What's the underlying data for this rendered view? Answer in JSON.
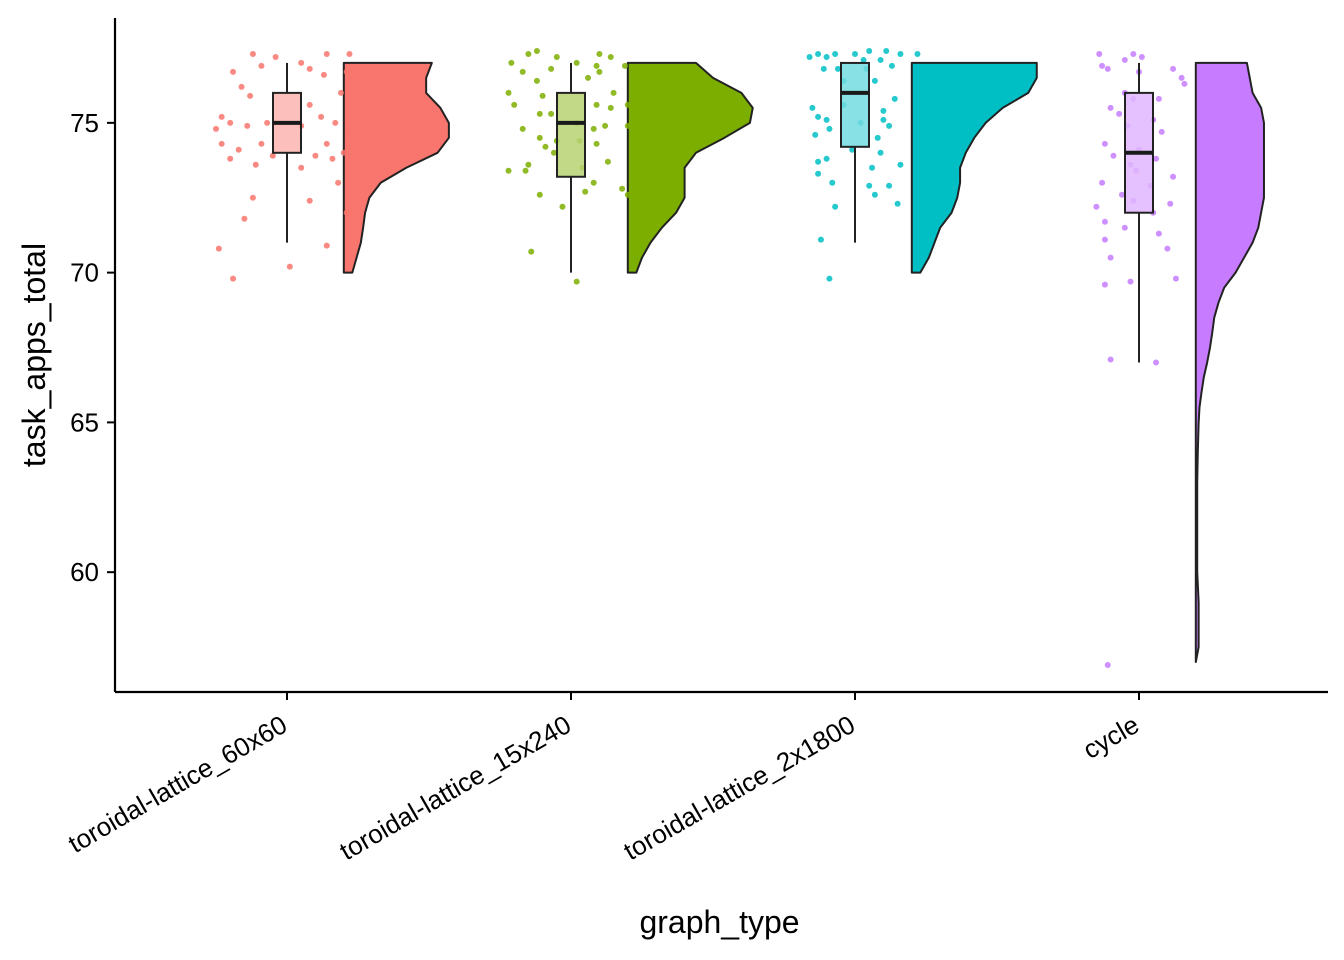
{
  "chart_data": {
    "type": "raincloud",
    "xlabel": "graph_type",
    "ylabel": "task_apps_total",
    "ylim": [
      56,
      78.5
    ],
    "y_ticks": [
      60,
      65,
      70,
      75
    ],
    "categories": [
      "toroidal-lattice_60x60",
      "toroidal-lattice_15x240",
      "toroidal-lattice_2x1800",
      "cycle"
    ],
    "grid": false,
    "legend": "none",
    "groups": [
      {
        "category": "toroidal-lattice_60x60",
        "color": "#F8766D",
        "box": {
          "whisker_low": 71,
          "q1": 74,
          "median": 75,
          "q3": 76,
          "whisker_high": 77
        },
        "points": [
          [
            -0.12,
            77.3
          ],
          [
            -0.04,
            77.2
          ],
          [
            0.05,
            77.0
          ],
          [
            0.14,
            77.3
          ],
          [
            0.22,
            77.3
          ],
          [
            -0.09,
            76.9
          ],
          [
            0.08,
            76.8
          ],
          [
            -0.19,
            76.7
          ],
          [
            0.13,
            76.6
          ],
          [
            0.21,
            76.7
          ],
          [
            -0.16,
            76.2
          ],
          [
            0.19,
            76.0
          ],
          [
            -0.13,
            75.9
          ],
          [
            0.08,
            75.6
          ],
          [
            0.24,
            75.6
          ],
          [
            -0.23,
            75.2
          ],
          [
            -0.07,
            75.0
          ],
          [
            0.12,
            75.2
          ],
          [
            -0.2,
            75.0
          ],
          [
            0.17,
            75.0
          ],
          [
            -0.25,
            74.8
          ],
          [
            -0.14,
            74.9
          ],
          [
            0.05,
            74.9
          ],
          [
            0.22,
            74.7
          ],
          [
            -0.23,
            74.3
          ],
          [
            -0.09,
            74.3
          ],
          [
            -0.17,
            74.1
          ],
          [
            0.14,
            74.3
          ],
          [
            0.2,
            74.0
          ],
          [
            -0.2,
            73.8
          ],
          [
            -0.05,
            73.9
          ],
          [
            0.1,
            73.9
          ],
          [
            0.16,
            73.8
          ],
          [
            -0.11,
            73.6
          ],
          [
            0.05,
            73.5
          ],
          [
            0.18,
            73.0
          ],
          [
            -0.12,
            72.5
          ],
          [
            0.08,
            72.4
          ],
          [
            0.21,
            72.0
          ],
          [
            -0.15,
            71.8
          ],
          [
            -0.24,
            70.8
          ],
          [
            0.14,
            70.9
          ],
          [
            0.01,
            70.2
          ],
          [
            -0.19,
            69.8
          ]
        ],
        "violin": [
          [
            70,
            0.03
          ],
          [
            70.5,
            0.045
          ],
          [
            71,
            0.06
          ],
          [
            71.5,
            0.068
          ],
          [
            72,
            0.075
          ],
          [
            72.5,
            0.09
          ],
          [
            73,
            0.13
          ],
          [
            73.5,
            0.22
          ],
          [
            74,
            0.33
          ],
          [
            74.5,
            0.37
          ],
          [
            75,
            0.37
          ],
          [
            75.5,
            0.34
          ],
          [
            76,
            0.29
          ],
          [
            76.5,
            0.29
          ],
          [
            77,
            0.31
          ]
        ]
      },
      {
        "category": "toroidal-lattice_15x240",
        "color": "#7CAE00",
        "box": {
          "whisker_low": 70,
          "q1": 73.2,
          "median": 75,
          "q3": 76,
          "whisker_high": 77
        },
        "points": [
          [
            -0.12,
            77.4
          ],
          [
            -0.15,
            77.3
          ],
          [
            -0.05,
            77.2
          ],
          [
            0.1,
            77.3
          ],
          [
            0.02,
            77.0
          ],
          [
            -0.21,
            77.0
          ],
          [
            0.14,
            77.2
          ],
          [
            -0.17,
            76.7
          ],
          [
            -0.07,
            76.8
          ],
          [
            0.09,
            76.9
          ],
          [
            0.19,
            76.9
          ],
          [
            0.1,
            76.7
          ],
          [
            -0.12,
            76.4
          ],
          [
            0.06,
            76.5
          ],
          [
            -0.22,
            76.0
          ],
          [
            -0.1,
            75.9
          ],
          [
            0.15,
            76.0
          ],
          [
            0.09,
            75.6
          ],
          [
            -0.2,
            75.6
          ],
          [
            0.14,
            75.5
          ],
          [
            0.2,
            75.6
          ],
          [
            0.24,
            75.7
          ],
          [
            -0.11,
            75.3
          ],
          [
            -0.07,
            75.3
          ],
          [
            0.02,
            75.0
          ],
          [
            0.12,
            74.9
          ],
          [
            0.2,
            74.9
          ],
          [
            -0.17,
            74.8
          ],
          [
            0.08,
            74.8
          ],
          [
            -0.11,
            74.5
          ],
          [
            -0.05,
            74.4
          ],
          [
            0.03,
            74.4
          ],
          [
            0.09,
            74.3
          ],
          [
            -0.09,
            74.2
          ],
          [
            -0.06,
            74.0
          ],
          [
            0.13,
            73.7
          ],
          [
            -0.15,
            73.6
          ],
          [
            0.04,
            73.5
          ],
          [
            -0.22,
            73.4
          ],
          [
            -0.16,
            73.4
          ],
          [
            0.08,
            73.0
          ],
          [
            0.18,
            72.8
          ],
          [
            0.2,
            72.6
          ],
          [
            -0.11,
            72.6
          ],
          [
            0.05,
            72.7
          ],
          [
            -0.03,
            72.2
          ],
          [
            0.23,
            72.2
          ],
          [
            -0.14,
            70.7
          ],
          [
            0.02,
            69.7
          ]
        ],
        "violin": [
          [
            70,
            0.03
          ],
          [
            70.5,
            0.05
          ],
          [
            71,
            0.08
          ],
          [
            71.5,
            0.12
          ],
          [
            72,
            0.17
          ],
          [
            72.5,
            0.2
          ],
          [
            73,
            0.2
          ],
          [
            73.5,
            0.2
          ],
          [
            74,
            0.24
          ],
          [
            74.5,
            0.34
          ],
          [
            75,
            0.43
          ],
          [
            75.5,
            0.44
          ],
          [
            76,
            0.4
          ],
          [
            76.5,
            0.3
          ],
          [
            77,
            0.24
          ]
        ]
      },
      {
        "category": "toroidal-lattice_2x1800",
        "color": "#00BFC4",
        "box": {
          "whisker_low": 71,
          "q1": 74.2,
          "median": 76,
          "q3": 77,
          "whisker_high": 77
        },
        "points": [
          [
            -0.13,
            77.3
          ],
          [
            -0.07,
            77.3
          ],
          [
            0.0,
            77.3
          ],
          [
            0.05,
            77.4
          ],
          [
            0.11,
            77.4
          ],
          [
            0.16,
            77.3
          ],
          [
            0.22,
            77.3
          ],
          [
            -0.16,
            77.2
          ],
          [
            -0.1,
            77.2
          ],
          [
            0.03,
            77.1
          ],
          [
            0.09,
            77.1
          ],
          [
            -0.11,
            76.8
          ],
          [
            -0.06,
            76.8
          ],
          [
            0.04,
            76.8
          ],
          [
            0.13,
            76.9
          ],
          [
            -0.04,
            76.4
          ],
          [
            0.07,
            76.4
          ],
          [
            0.14,
            75.8
          ],
          [
            -0.15,
            75.5
          ],
          [
            -0.04,
            75.6
          ],
          [
            0.1,
            75.4
          ],
          [
            -0.1,
            75.1
          ],
          [
            -0.13,
            75.2
          ],
          [
            0.02,
            75.0
          ],
          [
            0.1,
            75.1
          ],
          [
            0.12,
            74.9
          ],
          [
            -0.09,
            74.8
          ],
          [
            -0.14,
            74.6
          ],
          [
            0.08,
            74.5
          ],
          [
            -0.01,
            74.1
          ],
          [
            0.09,
            74.0
          ],
          [
            -0.1,
            73.8
          ],
          [
            -0.13,
            73.7
          ],
          [
            0.06,
            73.5
          ],
          [
            0.16,
            73.6
          ],
          [
            -0.13,
            73.3
          ],
          [
            -0.08,
            73.0
          ],
          [
            0.05,
            72.9
          ],
          [
            0.12,
            72.9
          ],
          [
            0.07,
            72.6
          ],
          [
            0.15,
            72.3
          ],
          [
            -0.07,
            72.2
          ],
          [
            -0.12,
            71.1
          ],
          [
            -0.09,
            69.8
          ]
        ],
        "violin": [
          [
            70,
            0.03
          ],
          [
            70.5,
            0.06
          ],
          [
            71,
            0.08
          ],
          [
            71.5,
            0.1
          ],
          [
            72,
            0.14
          ],
          [
            72.5,
            0.16
          ],
          [
            73,
            0.17
          ],
          [
            73.5,
            0.17
          ],
          [
            74,
            0.19
          ],
          [
            74.5,
            0.22
          ],
          [
            75,
            0.26
          ],
          [
            75.5,
            0.32
          ],
          [
            76,
            0.41
          ],
          [
            76.5,
            0.44
          ],
          [
            77,
            0.44
          ]
        ]
      },
      {
        "category": "cycle",
        "color": "#C77CFF",
        "box": {
          "whisker_low": 67,
          "q1": 72,
          "median": 74,
          "q3": 76,
          "whisker_high": 77
        },
        "points": [
          [
            -0.14,
            77.3
          ],
          [
            -0.02,
            77.3
          ],
          [
            0.01,
            77.2
          ],
          [
            -0.05,
            77.1
          ],
          [
            -0.13,
            76.9
          ],
          [
            -0.11,
            76.8
          ],
          [
            0.0,
            76.7
          ],
          [
            0.12,
            76.8
          ],
          [
            0.15,
            76.5
          ],
          [
            0.16,
            76.3
          ],
          [
            -0.05,
            76.0
          ],
          [
            -0.02,
            75.8
          ],
          [
            0.07,
            75.8
          ],
          [
            -0.1,
            75.5
          ],
          [
            -0.07,
            75.3
          ],
          [
            0.05,
            75.1
          ],
          [
            -0.04,
            74.9
          ],
          [
            0.08,
            74.7
          ],
          [
            -0.12,
            74.3
          ],
          [
            0.0,
            74.1
          ],
          [
            -0.09,
            73.9
          ],
          [
            0.06,
            73.8
          ],
          [
            -0.03,
            73.6
          ],
          [
            -0.01,
            73.4
          ],
          [
            0.12,
            73.2
          ],
          [
            -0.13,
            73.0
          ],
          [
            0.04,
            72.9
          ],
          [
            -0.06,
            72.6
          ],
          [
            -0.02,
            72.4
          ],
          [
            0.11,
            72.3
          ],
          [
            -0.15,
            72.2
          ],
          [
            0.05,
            72.0
          ],
          [
            -0.12,
            71.7
          ],
          [
            -0.05,
            71.5
          ],
          [
            0.07,
            71.3
          ],
          [
            -0.12,
            71.1
          ],
          [
            0.1,
            70.8
          ],
          [
            -0.1,
            70.5
          ],
          [
            0.13,
            69.8
          ],
          [
            -0.12,
            69.6
          ],
          [
            -0.03,
            69.7
          ],
          [
            -0.1,
            67.1
          ],
          [
            0.06,
            67.0
          ],
          [
            -0.11,
            56.9
          ]
        ],
        "violin": [
          [
            57,
            0.0
          ],
          [
            57.5,
            0.01
          ],
          [
            58,
            0.01
          ],
          [
            59,
            0.01
          ],
          [
            60,
            0.005
          ],
          [
            61,
            0.005
          ],
          [
            62,
            0.005
          ],
          [
            63,
            0.005
          ],
          [
            64,
            0.007
          ],
          [
            65,
            0.01
          ],
          [
            65.5,
            0.013
          ],
          [
            66,
            0.02
          ],
          [
            66.5,
            0.028
          ],
          [
            67,
            0.04
          ],
          [
            67.5,
            0.05
          ],
          [
            68,
            0.058
          ],
          [
            68.5,
            0.065
          ],
          [
            69,
            0.08
          ],
          [
            69.5,
            0.1
          ],
          [
            70,
            0.14
          ],
          [
            70.5,
            0.17
          ],
          [
            71,
            0.2
          ],
          [
            71.5,
            0.22
          ],
          [
            72,
            0.23
          ],
          [
            72.5,
            0.24
          ],
          [
            73,
            0.24
          ],
          [
            73.5,
            0.24
          ],
          [
            74,
            0.24
          ],
          [
            74.5,
            0.24
          ],
          [
            75,
            0.24
          ],
          [
            75.5,
            0.23
          ],
          [
            76,
            0.2
          ],
          [
            76.5,
            0.19
          ],
          [
            77,
            0.18
          ]
        ]
      }
    ]
  }
}
